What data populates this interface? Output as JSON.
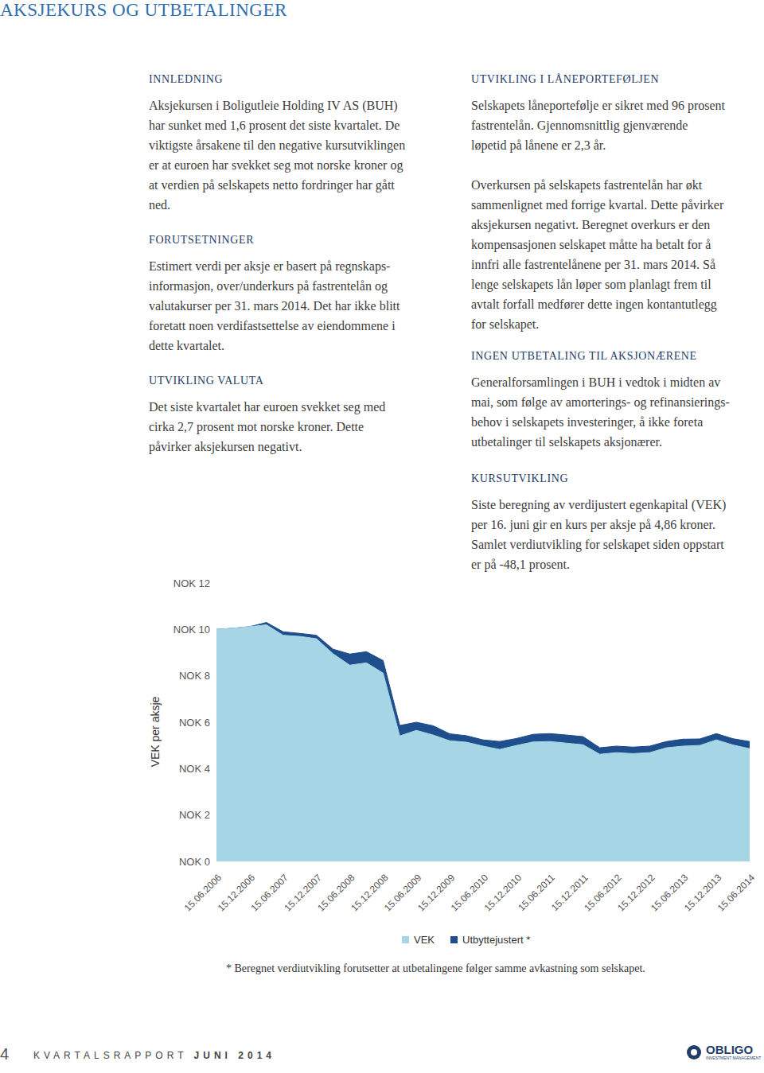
{
  "header": {
    "title": "AKSJEKURS OG UTBETALINGER"
  },
  "columns": [
    [
      {
        "heading": "INNLEDNING",
        "paragraphs": [
          [
            "Aksjekursen i Boligutleie Holding IV AS (BUH)",
            "har sunket med 1,6 prosent det siste kvartalet. De",
            "viktigste årsakene til den negative kursutviklingen",
            "er at euroen har svekket seg mot norske kroner og",
            "at verdien på selskapets netto fordringer har gått",
            "ned."
          ]
        ]
      },
      {
        "heading": "FORUTSETNINGER",
        "paragraphs": [
          [
            "Estimert verdi per aksje er basert på regnskaps-",
            "informasjon, over/underkurs på fastrentelån og",
            "valutakurser per 31. mars 2014. Det har ikke blitt",
            "foretatt noen verdifastsettelse av eiendommene i",
            "dette kvartalet."
          ]
        ]
      },
      {
        "heading": "UTVIKLING VALUTA",
        "paragraphs": [
          [
            "Det siste kvartalet har euroen svekket seg med",
            "cirka 2,7 prosent mot norske kroner. Dette",
            "påvirker aksjekursen negativt."
          ]
        ]
      }
    ],
    [
      {
        "heading": "UTVIKLING I LÅNEPORTEFØLJEN",
        "paragraphs": [
          [
            "Selskapets låneportefølje er sikret med 96 prosent",
            "fastrentelån. Gjennomsnittlig gjenværende",
            "løpetid på lånene er 2,3 år."
          ],
          [
            "Overkursen på selskapets fastrentelån har økt",
            "sammenlignet med forrige kvartal. Dette påvirker",
            "aksjekursen negativt. Beregnet overkurs er den",
            "kompensasjonen selskapet måtte ha betalt for å",
            "innfri alle fastrentelånene per 31. mars 2014. Så",
            "lenge selskapets lån løper som planlagt frem til",
            "avtalt forfall medfører dette ingen kontantutlegg",
            "for selskapet."
          ]
        ]
      },
      {
        "heading": "INGEN UTBETALING TIL AKSJONÆRENE",
        "paragraphs": [
          [
            "Generalforsamlingen i BUH i vedtok i midten av",
            "mai, som følge av amorterings- og refinansierings-",
            "behov i selskapets investeringer, å ikke foreta",
            "utbetalinger til selskapets aksjonærer."
          ]
        ]
      },
      {
        "heading": "KURSUTVIKLING",
        "paragraphs": [
          [
            "Siste beregning av verdijustert egenkapital (VEK)",
            "per 16. juni gir en kurs per aksje på 4,86 kroner.",
            "Samlet verdiutvikling for selskapet siden oppstart",
            "er på -48,1 prosent."
          ]
        ]
      }
    ]
  ],
  "chart_data": {
    "type": "area",
    "y_label": "VEK per aksje",
    "categories": [
      "15.06.2006",
      null,
      "15.12.2006",
      null,
      "15.06.2007",
      null,
      "15.12.2007",
      null,
      "15.06.2008",
      null,
      "15.12.2008",
      null,
      "15.06.2009",
      null,
      "15.12.2009",
      null,
      "15.06.2010",
      null,
      "15.12.2010",
      null,
      "15.06.2011",
      null,
      "15.12.2011",
      null,
      "15.06.2012",
      null,
      "15.12.2012",
      null,
      "15.06.2013",
      null,
      "15.12.2013",
      null,
      "15.06.2014"
    ],
    "series": [
      {
        "name": "VEK",
        "color": "#a6d5e6",
        "values": [
          10.0,
          10.05,
          10.12,
          10.2,
          9.75,
          9.7,
          9.6,
          8.95,
          8.46,
          8.56,
          8.12,
          5.41,
          5.65,
          5.45,
          5.2,
          5.14,
          4.97,
          4.83,
          5.0,
          5.15,
          5.17,
          5.1,
          5.03,
          4.62,
          4.69,
          4.65,
          4.69,
          4.9,
          4.97,
          5.0,
          5.24,
          5.02,
          4.86
        ]
      },
      {
        "name": "Utbyttejustert *",
        "color": "#1f4e8c",
        "values": [
          10.0,
          10.05,
          10.12,
          10.3,
          9.9,
          9.83,
          9.75,
          9.15,
          8.94,
          9.04,
          8.66,
          5.86,
          6.0,
          5.85,
          5.5,
          5.42,
          5.24,
          5.17,
          5.3,
          5.48,
          5.51,
          5.45,
          5.38,
          4.9,
          4.97,
          4.93,
          4.97,
          5.17,
          5.27,
          5.28,
          5.51,
          5.29,
          5.17
        ]
      }
    ],
    "ylim": [
      0,
      12
    ],
    "yticks": [
      {
        "value": 0,
        "label": "NOK 0"
      },
      {
        "value": 2,
        "label": "NOK 2"
      },
      {
        "value": 4,
        "label": "NOK 4"
      },
      {
        "value": 6,
        "label": "NOK 6"
      },
      {
        "value": 8,
        "label": "NOK 8"
      },
      {
        "value": 10,
        "label": "NOK 10"
      },
      {
        "value": 12,
        "label": "NOK 12"
      }
    ],
    "grid": false,
    "legend": "bottom"
  },
  "footnote": "* Beregnet verdiutvikling forutsetter at utbetalingene følger samme avkastning som selskapet.",
  "footer": {
    "page": "4",
    "report": "KVARTALSRAPPORT",
    "issue": "JUNI 2014",
    "logo": "OBLIGO",
    "logo_subtitle": "INVESTMENT MANAGEMENT"
  }
}
